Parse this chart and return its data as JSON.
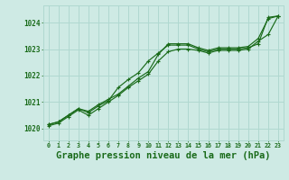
{
  "background_color": "#ceeae4",
  "grid_color": "#b0d8d0",
  "line_color": "#1a6b1a",
  "xlabel": "Graphe pression niveau de la mer (hPa)",
  "xlabel_fontsize": 7.5,
  "ytick_labels": [
    1020,
    1021,
    1022,
    1023,
    1024
  ],
  "xtick_labels": [
    0,
    1,
    2,
    3,
    4,
    5,
    6,
    7,
    8,
    9,
    10,
    11,
    12,
    13,
    14,
    15,
    16,
    17,
    18,
    19,
    20,
    21,
    22,
    23
  ],
  "ylim": [
    1019.55,
    1024.65
  ],
  "xlim": [
    -0.5,
    23.5
  ],
  "series1_x": [
    0,
    1,
    2,
    3,
    4,
    5,
    6,
    7,
    8,
    9,
    10,
    11,
    12,
    13,
    14,
    15,
    16,
    17,
    18,
    19,
    20,
    21,
    22,
    23
  ],
  "series1_y": [
    1020.15,
    1020.25,
    1020.5,
    1020.75,
    1020.6,
    1020.85,
    1021.05,
    1021.55,
    1021.85,
    1022.1,
    1022.55,
    1022.85,
    1023.15,
    1023.15,
    1023.15,
    1023.0,
    1022.9,
    1023.0,
    1023.0,
    1023.0,
    1023.05,
    1023.2,
    1024.2,
    1024.25
  ],
  "series2_x": [
    0,
    1,
    2,
    3,
    4,
    5,
    6,
    7,
    8,
    9,
    10,
    11,
    12,
    13,
    14,
    15,
    16,
    17,
    18,
    19,
    20,
    21,
    22,
    23
  ],
  "series2_y": [
    1020.15,
    1020.25,
    1020.5,
    1020.75,
    1020.65,
    1020.9,
    1021.1,
    1021.3,
    1021.6,
    1021.9,
    1022.15,
    1022.8,
    1023.2,
    1023.2,
    1023.2,
    1023.05,
    1022.95,
    1023.05,
    1023.05,
    1023.05,
    1023.1,
    1023.4,
    1024.15,
    1024.25
  ],
  "series3_x": [
    0,
    1,
    2,
    3,
    4,
    5,
    6,
    7,
    8,
    9,
    10,
    11,
    12,
    13,
    14,
    15,
    16,
    17,
    18,
    19,
    20,
    21,
    22,
    23
  ],
  "series3_y": [
    1020.1,
    1020.2,
    1020.45,
    1020.7,
    1020.5,
    1020.75,
    1021.0,
    1021.25,
    1021.55,
    1021.8,
    1022.05,
    1022.55,
    1022.9,
    1023.0,
    1023.0,
    1022.95,
    1022.85,
    1022.95,
    1022.95,
    1022.95,
    1023.0,
    1023.3,
    1023.55,
    1024.25
  ]
}
